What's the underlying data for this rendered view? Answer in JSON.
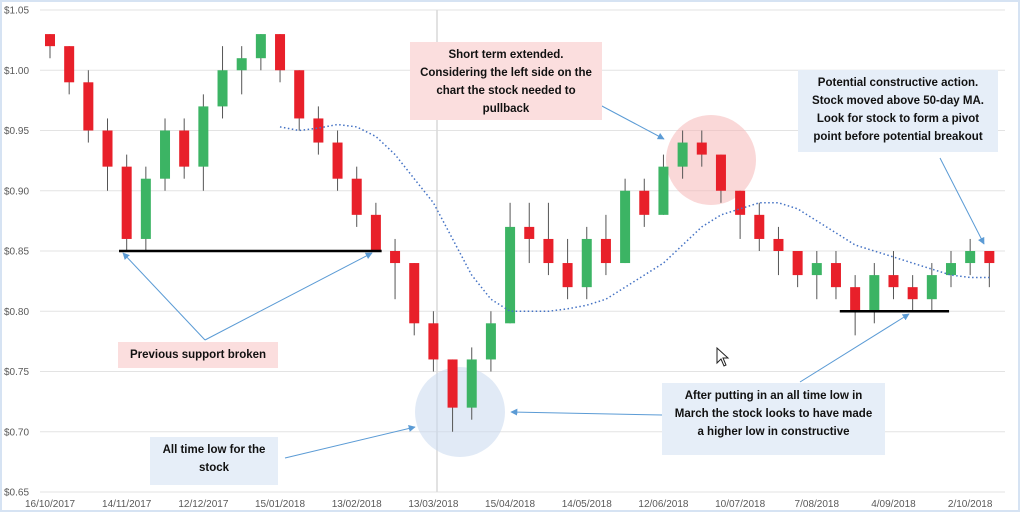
{
  "chart_data": {
    "type": "candlestick",
    "categories": [
      "16/10/2017",
      null,
      null,
      null,
      "14/11/2017",
      null,
      null,
      null,
      "12/12/2017",
      null,
      null,
      null,
      "15/01/2018",
      null,
      null,
      null,
      "13/02/2018",
      null,
      null,
      null,
      "13/03/2018",
      null,
      null,
      null,
      "15/04/2018",
      null,
      null,
      null,
      "14/05/2018",
      null,
      null,
      null,
      "12/06/2018",
      null,
      null,
      null,
      "10/07/2018",
      null,
      null,
      null,
      "7/08/2018",
      null,
      null,
      null,
      "4/09/2018",
      null,
      null,
      null,
      "2/10/2018",
      null
    ],
    "open": [
      1.03,
      1.02,
      0.99,
      0.95,
      0.92,
      0.86,
      0.91,
      0.95,
      0.92,
      0.97,
      1.0,
      1.01,
      1.03,
      1.0,
      0.96,
      0.94,
      0.91,
      0.88,
      0.85,
      0.84,
      0.79,
      0.76,
      0.72,
      0.76,
      0.79,
      0.87,
      0.86,
      0.84,
      0.82,
      0.86,
      0.84,
      0.9,
      0.88,
      0.92,
      0.94,
      0.93,
      0.9,
      0.88,
      0.86,
      0.85,
      0.83,
      0.84,
      0.82,
      0.8,
      0.83,
      0.82,
      0.81,
      0.83,
      0.84,
      0.85
    ],
    "high": [
      1.03,
      1.02,
      1.0,
      0.96,
      0.93,
      0.92,
      0.96,
      0.96,
      0.98,
      1.02,
      1.02,
      1.03,
      1.03,
      1.0,
      0.97,
      0.95,
      0.92,
      0.89,
      0.86,
      0.84,
      0.8,
      0.76,
      0.77,
      0.8,
      0.89,
      0.89,
      0.89,
      0.86,
      0.87,
      0.88,
      0.91,
      0.91,
      0.93,
      0.95,
      0.95,
      0.93,
      0.9,
      0.89,
      0.87,
      0.85,
      0.85,
      0.85,
      0.83,
      0.84,
      0.85,
      0.83,
      0.84,
      0.85,
      0.86,
      0.85
    ],
    "low": [
      1.01,
      0.98,
      0.94,
      0.9,
      0.85,
      0.85,
      0.9,
      0.91,
      0.9,
      0.96,
      0.98,
      1.0,
      0.99,
      0.95,
      0.93,
      0.9,
      0.87,
      0.85,
      0.81,
      0.78,
      0.75,
      0.7,
      0.71,
      0.75,
      0.79,
      0.84,
      0.83,
      0.81,
      0.81,
      0.83,
      0.84,
      0.87,
      0.88,
      0.91,
      0.92,
      0.89,
      0.86,
      0.85,
      0.83,
      0.82,
      0.81,
      0.81,
      0.78,
      0.79,
      0.81,
      0.8,
      0.8,
      0.82,
      0.83,
      0.82
    ],
    "close": [
      1.02,
      0.99,
      0.95,
      0.92,
      0.86,
      0.91,
      0.95,
      0.92,
      0.97,
      1.0,
      1.01,
      1.03,
      1.0,
      0.96,
      0.94,
      0.91,
      0.88,
      0.85,
      0.84,
      0.79,
      0.76,
      0.72,
      0.76,
      0.79,
      0.87,
      0.86,
      0.84,
      0.82,
      0.86,
      0.84,
      0.9,
      0.88,
      0.92,
      0.94,
      0.93,
      0.9,
      0.88,
      0.86,
      0.85,
      0.83,
      0.84,
      0.82,
      0.8,
      0.83,
      0.82,
      0.81,
      0.83,
      0.84,
      0.85,
      0.84
    ],
    "up_color": "#3cb464",
    "down_color": "#e8202a",
    "moving_average": {
      "color": "#4472c4",
      "values": [
        null,
        null,
        null,
        null,
        null,
        null,
        null,
        null,
        null,
        null,
        null,
        null,
        0.953,
        0.95,
        0.952,
        0.955,
        0.953,
        0.945,
        0.93,
        0.91,
        0.89,
        0.86,
        0.83,
        0.81,
        0.8,
        0.8,
        0.8,
        0.802,
        0.805,
        0.81,
        0.82,
        0.83,
        0.84,
        0.855,
        0.87,
        0.88,
        0.885,
        0.89,
        0.89,
        0.885,
        0.875,
        0.865,
        0.855,
        0.85,
        0.845,
        0.84,
        0.835,
        0.83,
        0.828,
        0.828
      ]
    },
    "support_lines": [
      0.85,
      0.8
    ],
    "ylim": [
      0.65,
      1.05
    ],
    "yticks": [
      {
        "value": 0.65,
        "label": "$0.65"
      },
      {
        "value": 0.7,
        "label": "$0.70"
      },
      {
        "value": 0.75,
        "label": "$0.75"
      },
      {
        "value": 0.8,
        "label": "$0.80"
      },
      {
        "value": 0.85,
        "label": "$0.85"
      },
      {
        "value": 0.9,
        "label": "$0.90"
      },
      {
        "value": 0.95,
        "label": "$0.95"
      },
      {
        "value": 1.0,
        "label": "$1.00"
      },
      {
        "value": 1.05,
        "label": "$1.05"
      }
    ],
    "grid": true,
    "annotations": [
      "Short term extended. Considering the left side on the chart the stock needed to pullback",
      "Potential constructive action. Stock moved above 50-day MA. Look for stock to form a pivot point before potential breakout",
      "Previous support broken",
      "All time low for the stock",
      "After putting in an all time low in March the stock looks to have made a higher low in constructive"
    ]
  }
}
